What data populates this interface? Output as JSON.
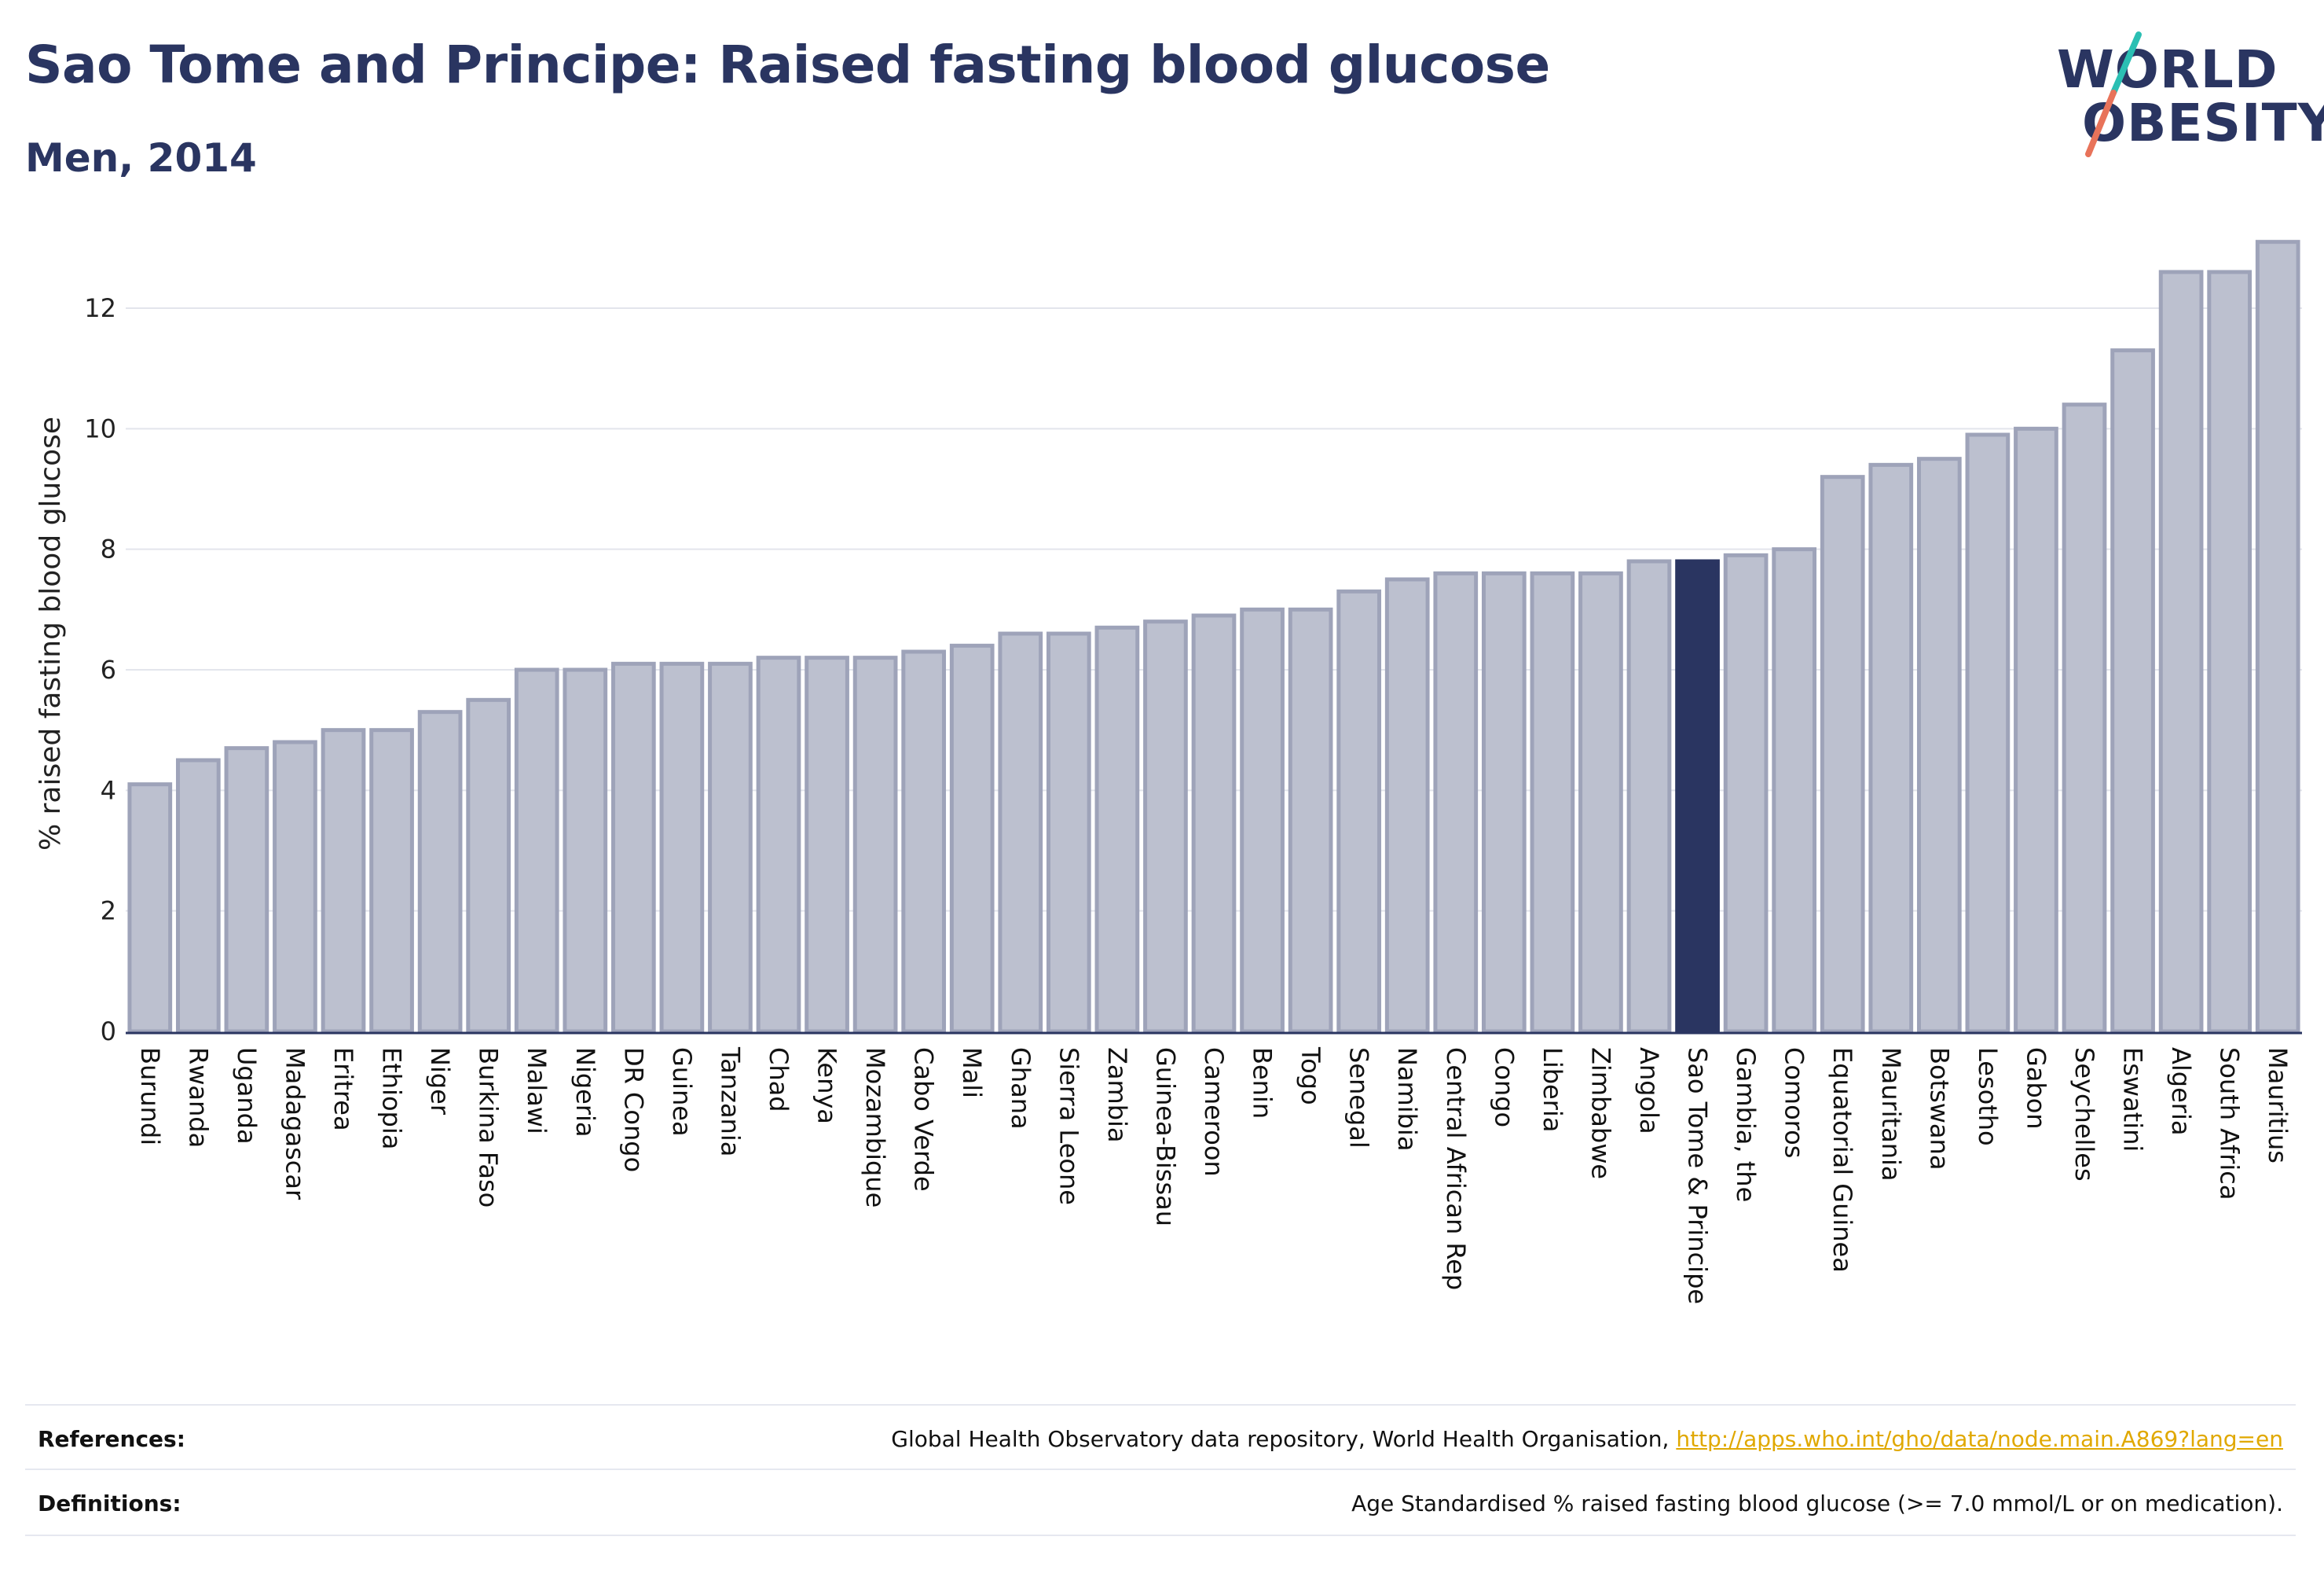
{
  "header": {
    "title": "Sao Tome and Principe: Raised fasting blood glucose",
    "subtitle": "Men, 2014"
  },
  "logo": {
    "line1": "WORLD",
    "line2": "OBESITY",
    "slash_color_top": "#2bbfb3",
    "slash_color_bottom": "#e8735a"
  },
  "colors": {
    "bar": "#bcc0cf",
    "bar_border": "#9ea3b9",
    "highlight": "#2a3561",
    "grid": "#e3e5ec",
    "axis": "#2a3561"
  },
  "chart_data": {
    "type": "bar",
    "ylabel": "% raised fasting blood glucose",
    "xlabel": "",
    "ylim": [
      0,
      13.2
    ],
    "yticks": [
      0,
      2,
      4,
      6,
      8,
      10,
      12
    ],
    "grid": true,
    "highlight": "Sao Tome & Principe",
    "categories": [
      "Burundi",
      "Rwanda",
      "Uganda",
      "Madagascar",
      "Eritrea",
      "Ethiopia",
      "Niger",
      "Burkina Faso",
      "Malawi",
      "Nigeria",
      "DR Congo",
      "Guinea",
      "Tanzania",
      "Chad",
      "Kenya",
      "Mozambique",
      "Cabo Verde",
      "Mali",
      "Ghana",
      "Sierra Leone",
      "Zambia",
      "Guinea-Bissau",
      "Cameroon",
      "Benin",
      "Togo",
      "Senegal",
      "Namibia",
      "Central African Rep",
      "Congo",
      "Liberia",
      "Zimbabwe",
      "Angola",
      "Sao Tome & Principe",
      "Gambia, the",
      "Comoros",
      "Equatorial Guinea",
      "Mauritania",
      "Botswana",
      "Lesotho",
      "Gabon",
      "Seychelles",
      "Eswatini",
      "Algeria",
      "South Africa",
      "Mauritius"
    ],
    "values": [
      4.1,
      4.5,
      4.7,
      4.8,
      5.0,
      5.0,
      5.3,
      5.5,
      6.0,
      6.0,
      6.1,
      6.1,
      6.1,
      6.2,
      6.2,
      6.2,
      6.3,
      6.4,
      6.6,
      6.6,
      6.7,
      6.8,
      6.9,
      7.0,
      7.0,
      7.3,
      7.5,
      7.6,
      7.6,
      7.6,
      7.6,
      7.8,
      7.8,
      7.9,
      8.0,
      9.2,
      9.4,
      9.5,
      9.9,
      10.0,
      10.4,
      11.3,
      12.6,
      12.6,
      13.1
    ]
  },
  "footer": {
    "references_label": "References:",
    "references_text": "Global Health Observatory data repository, World Health Organisation, ",
    "references_link": "http://apps.who.int/gho/data/node.main.A869?lang=en",
    "definitions_label": "Definitions:",
    "definitions_text": "Age Standardised % raised fasting blood glucose (>= 7.0 mmol/L or on medication)."
  }
}
